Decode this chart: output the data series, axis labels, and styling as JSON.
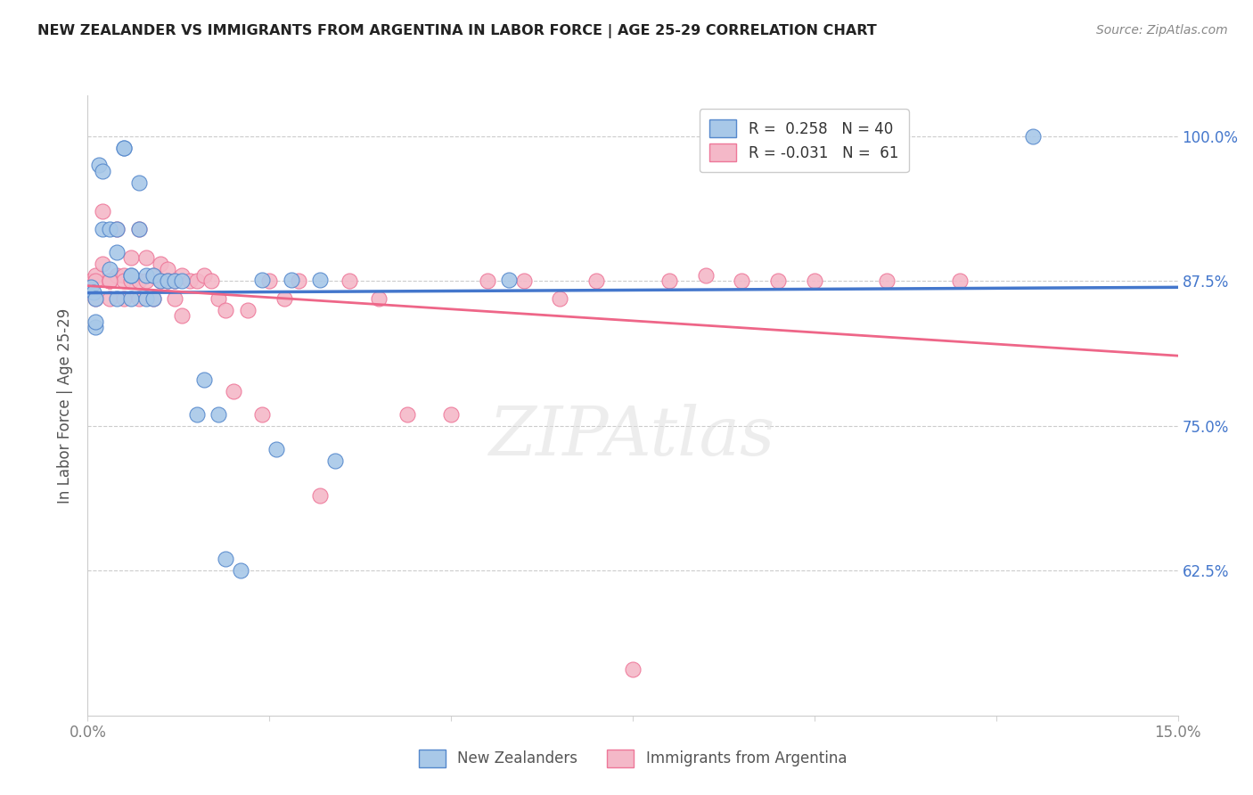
{
  "title": "NEW ZEALANDER VS IMMIGRANTS FROM ARGENTINA IN LABOR FORCE | AGE 25-29 CORRELATION CHART",
  "source": "Source: ZipAtlas.com",
  "ylabel": "In Labor Force | Age 25-29",
  "xmin": 0.0,
  "xmax": 0.15,
  "ymin": 0.5,
  "ymax": 1.035,
  "yticks": [
    0.625,
    0.75,
    0.875,
    1.0
  ],
  "ytick_labels": [
    "62.5%",
    "75.0%",
    "87.5%",
    "100.0%"
  ],
  "xticks": [
    0.0,
    0.025,
    0.05,
    0.075,
    0.1,
    0.125,
    0.15
  ],
  "xtick_labels": [
    "0.0%",
    "",
    "",
    "",
    "",
    "",
    "15.0%"
  ],
  "legend_r_blue": "R =  0.258",
  "legend_n_blue": "N = 40",
  "legend_r_pink": "R = -0.031",
  "legend_n_pink": "N =  61",
  "blue_fill": "#A8C8E8",
  "pink_fill": "#F4B8C8",
  "blue_edge": "#5588CC",
  "pink_edge": "#EE7799",
  "line_blue": "#4477CC",
  "line_pink": "#EE6688",
  "blue_scatter_x": [
    0.0005,
    0.0008,
    0.001,
    0.001,
    0.0015,
    0.002,
    0.002,
    0.003,
    0.003,
    0.004,
    0.004,
    0.004,
    0.005,
    0.005,
    0.006,
    0.006,
    0.006,
    0.007,
    0.007,
    0.008,
    0.008,
    0.009,
    0.009,
    0.01,
    0.011,
    0.012,
    0.013,
    0.015,
    0.016,
    0.018,
    0.019,
    0.021,
    0.024,
    0.026,
    0.028,
    0.032,
    0.034,
    0.058,
    0.13,
    0.001
  ],
  "blue_scatter_y": [
    0.87,
    0.865,
    0.86,
    0.835,
    0.975,
    0.92,
    0.97,
    0.885,
    0.92,
    0.86,
    0.92,
    0.9,
    0.99,
    0.99,
    0.88,
    0.86,
    0.88,
    0.96,
    0.92,
    0.88,
    0.86,
    0.88,
    0.86,
    0.875,
    0.875,
    0.875,
    0.875,
    0.76,
    0.79,
    0.76,
    0.635,
    0.625,
    0.876,
    0.73,
    0.876,
    0.876,
    0.72,
    0.876,
    1.0,
    0.84
  ],
  "pink_scatter_x": [
    0.0005,
    0.001,
    0.001,
    0.001,
    0.002,
    0.002,
    0.003,
    0.003,
    0.003,
    0.004,
    0.004,
    0.005,
    0.005,
    0.005,
    0.006,
    0.006,
    0.007,
    0.007,
    0.007,
    0.008,
    0.008,
    0.009,
    0.009,
    0.01,
    0.01,
    0.011,
    0.011,
    0.012,
    0.012,
    0.013,
    0.013,
    0.014,
    0.015,
    0.016,
    0.017,
    0.018,
    0.019,
    0.02,
    0.022,
    0.024,
    0.025,
    0.027,
    0.029,
    0.032,
    0.036,
    0.04,
    0.044,
    0.05,
    0.055,
    0.06,
    0.065,
    0.07,
    0.075,
    0.08,
    0.085,
    0.09,
    0.095,
    0.1,
    0.11,
    0.12,
    0.003
  ],
  "pink_scatter_y": [
    0.875,
    0.88,
    0.875,
    0.86,
    0.935,
    0.89,
    0.875,
    0.86,
    0.875,
    0.92,
    0.88,
    0.88,
    0.875,
    0.86,
    0.895,
    0.875,
    0.92,
    0.86,
    0.875,
    0.895,
    0.875,
    0.88,
    0.86,
    0.89,
    0.875,
    0.885,
    0.875,
    0.875,
    0.86,
    0.88,
    0.845,
    0.875,
    0.875,
    0.88,
    0.875,
    0.86,
    0.85,
    0.78,
    0.85,
    0.76,
    0.875,
    0.86,
    0.875,
    0.69,
    0.875,
    0.86,
    0.76,
    0.76,
    0.875,
    0.875,
    0.86,
    0.875,
    0.54,
    0.875,
    0.88,
    0.875,
    0.875,
    0.875,
    0.875,
    0.875,
    0.875
  ]
}
